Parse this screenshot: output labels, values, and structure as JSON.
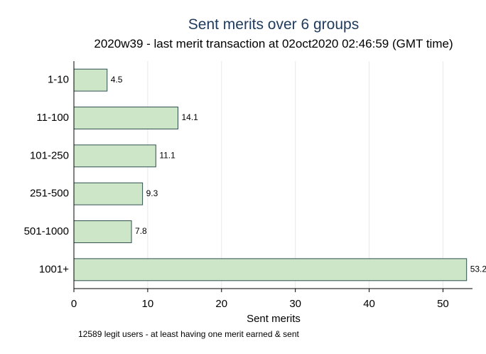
{
  "chart_data": {
    "type": "bar",
    "orientation": "horizontal",
    "title": "Sent merits over 6 groups",
    "subtitle": "2020w39 - last merit transaction at 02oct2020 02:46:59 (GMT time)",
    "categories": [
      "1-10",
      "11-100",
      "101-250",
      "251-500",
      "501-1000",
      "1001+"
    ],
    "values": [
      4.5,
      14.1,
      11.1,
      9.3,
      7.8,
      53.2
    ],
    "value_labels": [
      "4.5",
      "14.1",
      "11.1",
      "9.3",
      "7.8",
      "53.2"
    ],
    "xlabel": "Sent merits",
    "xlim": [
      0,
      54
    ],
    "xticks": [
      0,
      10,
      20,
      30,
      40,
      50
    ],
    "xtick_labels": [
      "0",
      "10",
      "20",
      "30",
      "40",
      "50"
    ],
    "grid": true,
    "note": "12589 legit users - at least having one merit earned & sent",
    "colors": {
      "bar_fill": "#cde6c8",
      "bar_stroke": "#2f4f4f",
      "title": "#1e3a5c",
      "grid": "#e8ecef"
    }
  }
}
